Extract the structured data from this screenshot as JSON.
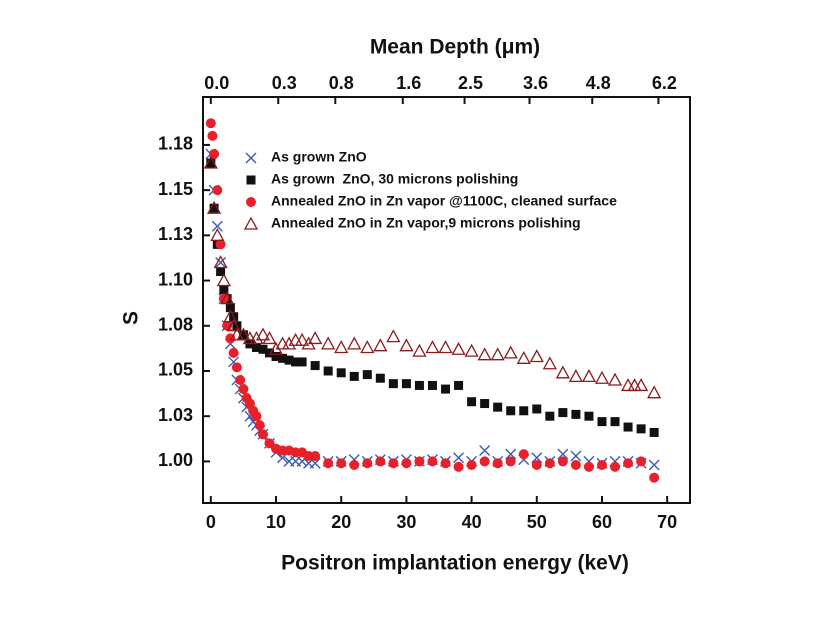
{
  "chart_data": {
    "type": "scatter",
    "xlabel": "Positron implantation energy (keV)",
    "ylabel": "S",
    "x2label": "Mean Depth (μm)",
    "xlim": [
      -1.2,
      73.5
    ],
    "ylim": [
      0.977,
      1.2015
    ],
    "xticks": [
      0,
      10,
      20,
      30,
      40,
      50,
      60,
      70
    ],
    "yticks": [
      {
        "value": 1.0,
        "label": "1.00"
      },
      {
        "value": 1.025,
        "label": "1.03"
      },
      {
        "value": 1.05,
        "label": "1.05"
      },
      {
        "value": 1.075,
        "label": "1.08"
      },
      {
        "value": 1.1,
        "label": "1.10"
      },
      {
        "value": 1.125,
        "label": "1.13"
      },
      {
        "value": 1.15,
        "label": "1.15"
      },
      {
        "value": 1.175,
        "label": "1.18"
      }
    ],
    "x2ticks": [
      {
        "value": 0,
        "label": "0.0"
      },
      0.3,
      0.8,
      1.6,
      2.5,
      3.6,
      4.8,
      6.2
    ],
    "legend": "upper left",
    "series": [
      {
        "name": "As grown ZnO",
        "color": "#3a5cb4",
        "marker": "x",
        "x": [
          0,
          0.5,
          1,
          1.5,
          2,
          2.5,
          3,
          3.5,
          4,
          4.5,
          5,
          5.5,
          6,
          6.5,
          7,
          7.5,
          8,
          9,
          10,
          11,
          12,
          13,
          14,
          15,
          16,
          18,
          20,
          22,
          24,
          26,
          28,
          30,
          32,
          34,
          36,
          38,
          40,
          42,
          44,
          46,
          48,
          50,
          52,
          54,
          56,
          58,
          60,
          62,
          64,
          66,
          68
        ],
        "values": [
          1.17,
          1.15,
          1.13,
          1.11,
          1.09,
          1.075,
          1.065,
          1.055,
          1.045,
          1.04,
          1.035,
          1.03,
          1.025,
          1.022,
          1.02,
          1.017,
          1.015,
          1.01,
          1.005,
          1.002,
          1.0,
          1.0,
          1.0,
          0.999,
          0.999,
          1.0,
          1.0,
          1.001,
          1.0,
          1.001,
          1.0,
          1.001,
          1.0,
          1.001,
          1.0,
          1.002,
          1.0,
          1.006,
          1.0,
          1.004,
          1.001,
          1.002,
          1.0,
          1.004,
          1.003,
          1.0,
          0.999,
          1.0,
          1.0,
          0.999,
          0.998
        ]
      },
      {
        "name": "As grown  ZnO, 30 microns polishing",
        "color": "#111111",
        "marker": "square",
        "x": [
          0,
          0.5,
          1,
          1.5,
          2,
          2.5,
          3,
          3.5,
          4,
          5,
          6,
          7,
          8,
          9,
          10,
          11,
          12,
          13,
          14,
          16,
          18,
          20,
          22,
          24,
          26,
          28,
          30,
          32,
          34,
          36,
          38,
          40,
          42,
          44,
          46,
          48,
          50,
          52,
          54,
          56,
          58,
          60,
          62,
          64,
          66,
          68
        ],
        "values": [
          1.165,
          1.14,
          1.12,
          1.105,
          1.095,
          1.09,
          1.085,
          1.08,
          1.075,
          1.07,
          1.065,
          1.063,
          1.062,
          1.06,
          1.058,
          1.057,
          1.056,
          1.055,
          1.055,
          1.053,
          1.05,
          1.049,
          1.047,
          1.048,
          1.046,
          1.043,
          1.043,
          1.042,
          1.042,
          1.04,
          1.042,
          1.033,
          1.032,
          1.03,
          1.028,
          1.028,
          1.029,
          1.025,
          1.027,
          1.026,
          1.025,
          1.022,
          1.022,
          1.019,
          1.018,
          1.016
        ]
      },
      {
        "name": "Annealed ZnO in Zn vapor @1100C, cleaned surface",
        "color": "#e8202a",
        "marker": "circle",
        "x": [
          0,
          0.25,
          0.5,
          1,
          1.5,
          2,
          2.5,
          3,
          3.5,
          4,
          4.5,
          5,
          5.5,
          6,
          6.5,
          7,
          7.5,
          8,
          9,
          10,
          11,
          12,
          13,
          14,
          15,
          16,
          18,
          20,
          22,
          24,
          26,
          28,
          30,
          32,
          34,
          36,
          38,
          40,
          42,
          44,
          46,
          48,
          50,
          52,
          54,
          56,
          58,
          60,
          62,
          64,
          66,
          68
        ],
        "values": [
          1.187,
          1.18,
          1.17,
          1.15,
          1.12,
          1.09,
          1.075,
          1.068,
          1.06,
          1.052,
          1.045,
          1.04,
          1.035,
          1.032,
          1.028,
          1.025,
          1.02,
          1.015,
          1.01,
          1.007,
          1.006,
          1.006,
          1.005,
          1.005,
          1.003,
          1.003,
          0.999,
          0.999,
          0.998,
          0.999,
          1.0,
          0.999,
          0.999,
          1.0,
          1.0,
          0.999,
          0.997,
          0.998,
          1.0,
          0.999,
          1.0,
          1.004,
          0.998,
          0.999,
          1.0,
          0.998,
          0.997,
          0.998,
          0.997,
          0.999,
          1.0,
          0.991
        ]
      },
      {
        "name": "Annealed ZnO in Zn vapor,9 microns polishing",
        "color": "#8b1a1a",
        "marker": "triangle",
        "x": [
          0,
          0.5,
          1,
          1.5,
          2,
          2.5,
          3,
          3.5,
          4,
          5,
          6,
          7,
          8,
          9,
          10,
          11,
          12,
          13,
          14,
          15,
          16,
          18,
          20,
          22,
          24,
          26,
          28,
          30,
          32,
          34,
          36,
          38,
          40,
          42,
          44,
          46,
          48,
          50,
          52,
          54,
          56,
          58,
          60,
          62,
          64,
          65,
          66,
          68
        ],
        "values": [
          1.165,
          1.14,
          1.125,
          1.11,
          1.1,
          1.09,
          1.08,
          1.075,
          1.07,
          1.07,
          1.068,
          1.068,
          1.07,
          1.068,
          1.062,
          1.065,
          1.065,
          1.067,
          1.067,
          1.065,
          1.068,
          1.065,
          1.063,
          1.065,
          1.063,
          1.064,
          1.069,
          1.064,
          1.061,
          1.063,
          1.063,
          1.062,
          1.061,
          1.059,
          1.059,
          1.06,
          1.057,
          1.058,
          1.054,
          1.049,
          1.047,
          1.047,
          1.046,
          1.045,
          1.042,
          1.042,
          1.042,
          1.038
        ]
      }
    ]
  }
}
